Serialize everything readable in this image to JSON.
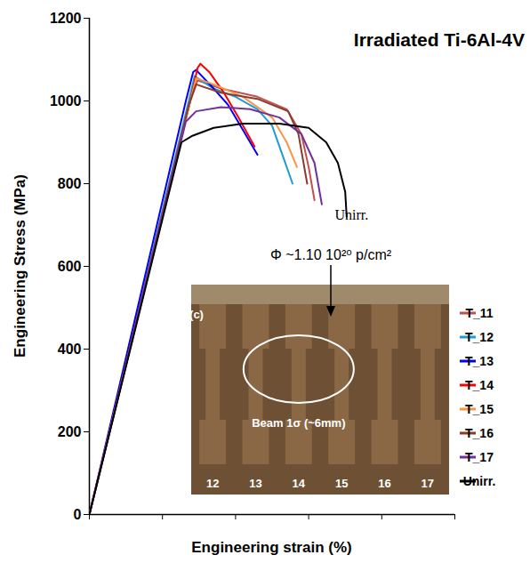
{
  "chart_data": {
    "type": "line",
    "title": "Irradiated Ti-6Al-4V",
    "x_label": "Engineering strain (%)",
    "y_label": "Engineering Stress (MPa)",
    "xlim": [
      0,
      25
    ],
    "xticks": [
      0,
      5,
      10,
      15,
      20,
      25
    ],
    "ylim": [
      0,
      1200
    ],
    "yticks": [
      0,
      200,
      400,
      600,
      800,
      1000,
      1200
    ],
    "tick_labels": "y",
    "legend": "right",
    "series": [
      {
        "name": "T_11",
        "color": "#c0504d",
        "x": [
          0,
          6.9,
          7.4,
          9,
          11.5,
          13.5,
          14.5,
          15.0,
          15.4
        ],
        "values": [
          0,
          1000,
          1050,
          1030,
          1010,
          980,
          920,
          840,
          760
        ]
      },
      {
        "name": "T_12",
        "color": "#1f9bd7",
        "x": [
          0,
          6.8,
          7.2,
          8.5,
          10,
          11.5,
          12.5,
          13.2,
          13.9
        ],
        "values": [
          0,
          1000,
          1060,
          1030,
          1010,
          980,
          940,
          870,
          800
        ]
      },
      {
        "name": "T_13",
        "color": "#0000ff",
        "x": [
          0,
          6.6,
          7.1,
          7.3,
          8.5,
          9.5,
          10.5,
          11.5
        ],
        "values": [
          0,
          1000,
          1070,
          1075,
          1030,
          990,
          930,
          870
        ]
      },
      {
        "name": "T_14",
        "color": "#ff0000",
        "x": [
          0,
          6.9,
          7.4,
          7.6,
          8.2,
          9.2,
          10.2,
          11.3
        ],
        "values": [
          0,
          1000,
          1080,
          1090,
          1070,
          1020,
          960,
          890
        ]
      },
      {
        "name": "T_15",
        "color": "#f79646",
        "x": [
          0,
          6.9,
          7.3,
          8.5,
          10.5,
          12.5,
          13.5,
          14.2
        ],
        "values": [
          0,
          1000,
          1055,
          1040,
          1010,
          960,
          900,
          840
        ]
      },
      {
        "name": "T_16",
        "color": "#8b3a2a",
        "x": [
          0,
          6.8,
          7.3,
          9,
          11.5,
          13.6,
          14.3,
          14.9
        ],
        "values": [
          0,
          990,
          1040,
          1020,
          1005,
          975,
          920,
          800
        ]
      },
      {
        "name": "T_17",
        "color": "#7030a0",
        "x": [
          0,
          6.6,
          7.3,
          9,
          11,
          13,
          14.5,
          15.4,
          15.9
        ],
        "values": [
          0,
          950,
          975,
          985,
          980,
          960,
          920,
          850,
          750
        ]
      },
      {
        "name": "Unirr.",
        "color": "#000000",
        "x": [
          0,
          6.3,
          7,
          8.5,
          10.5,
          13,
          15,
          16.2,
          17,
          17.5,
          17.6
        ],
        "values": [
          0,
          900,
          915,
          935,
          945,
          945,
          935,
          900,
          850,
          780,
          720
        ]
      }
    ],
    "annotations": {
      "curve_label": "Unirr.",
      "fluence": "Φ ~1.10 10²⁰ p/cm²"
    },
    "inset": {
      "panel": "(c)",
      "beam": "Beam 1σ (~6mm)",
      "specimens": [
        "12",
        "13",
        "14",
        "15",
        "16",
        "17"
      ]
    }
  }
}
